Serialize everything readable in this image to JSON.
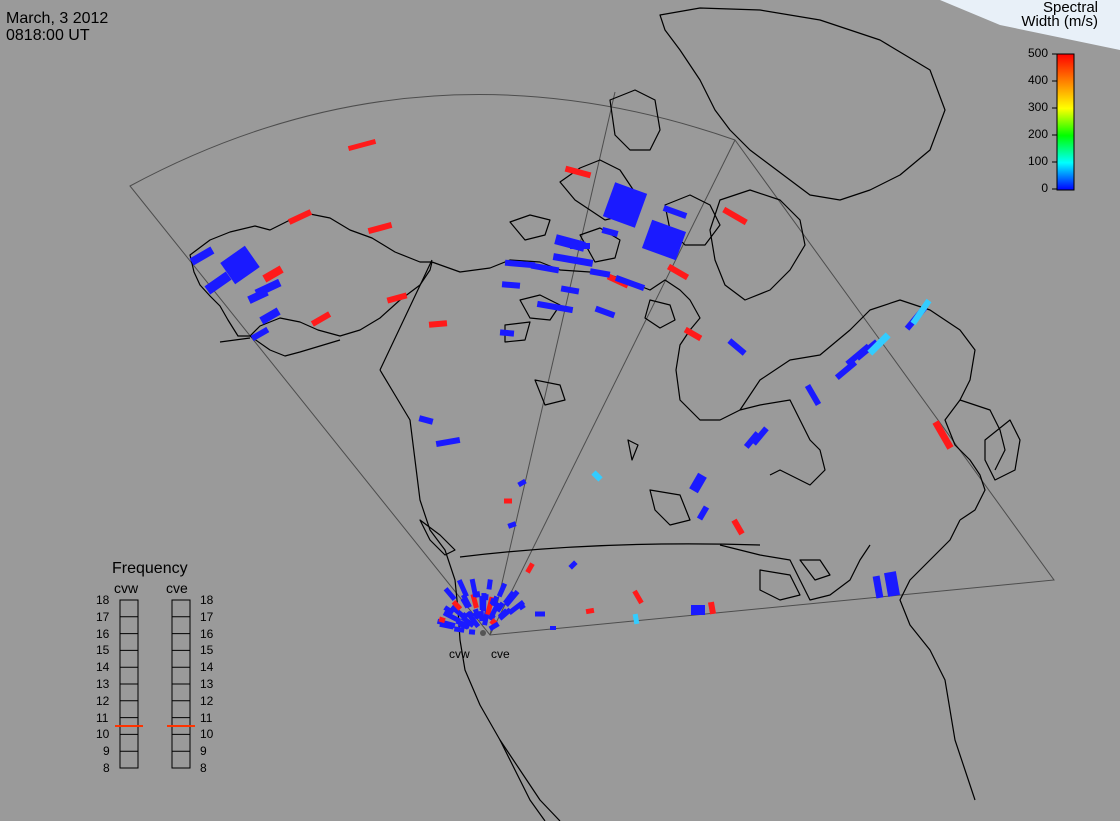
{
  "header": {
    "date": "March, 3 2012",
    "time": "0818:00 UT"
  },
  "colorbar": {
    "title_line1": "Spectral",
    "title_line2": "Width (m/s)",
    "ticks": [
      "500",
      "400",
      "300",
      "200",
      "100",
      "0"
    ],
    "colors": [
      "#0000ff",
      "#00ffff",
      "#00ff00",
      "#ffff00",
      "#ff8000",
      "#ff0000"
    ]
  },
  "frequency": {
    "title": "Frequency",
    "radar_a": "cvw",
    "radar_b": "cve",
    "scale": [
      "18",
      "17",
      "16",
      "15",
      "14",
      "13",
      "12",
      "11",
      "10",
      "9",
      "8"
    ],
    "selected_mhz_a": 10.5,
    "selected_mhz_b": 10.5
  },
  "radars": {
    "west_label": "cvw",
    "east_label": "cve"
  },
  "colors": {
    "background": "#9a9a9a",
    "coast": "#000000",
    "fov": "#4d4d4d",
    "low": "#1a1aff",
    "mid": "#33ccff",
    "high": "#ff1a1a"
  }
}
